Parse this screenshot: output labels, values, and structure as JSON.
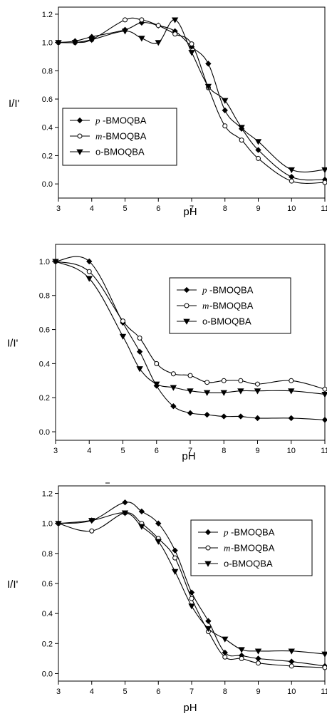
{
  "chart_data": [
    {
      "type": "line",
      "xlabel": "pH",
      "ylabel": "I/I'",
      "xlim": [
        3,
        11
      ],
      "ylim": [
        -0.1,
        1.25
      ],
      "xticks": [
        3,
        4,
        5,
        6,
        7,
        8,
        9,
        10,
        11
      ],
      "yticks": [
        0.0,
        0.2,
        0.4,
        0.6,
        0.8,
        1.0,
        1.2
      ],
      "ytick_labels": [
        "0.0",
        "0.2",
        "0.4",
        "0.6",
        "0.8",
        "1.0",
        "1.2"
      ],
      "grid": false,
      "legend_position": "center-left",
      "series": [
        {
          "prefix": "p",
          "name": "-BMOQBA",
          "marker": "diamond",
          "x": [
            3,
            3.5,
            4,
            5,
            5.5,
            6,
            6.5,
            7,
            7.5,
            8,
            8.5,
            9,
            10,
            11
          ],
          "y": [
            1.0,
            1.01,
            1.04,
            1.09,
            1.14,
            1.12,
            1.08,
            0.97,
            0.85,
            0.52,
            0.39,
            0.24,
            0.05,
            0.03
          ]
        },
        {
          "prefix": "m",
          "name": "-BMOQBA",
          "marker": "circle",
          "x": [
            3,
            3.5,
            4,
            5,
            5.5,
            6,
            6.5,
            7,
            7.5,
            8,
            8.5,
            9,
            10,
            11
          ],
          "y": [
            1.0,
            1.0,
            1.02,
            1.16,
            1.16,
            1.12,
            1.06,
            0.99,
            0.68,
            0.41,
            0.31,
            0.18,
            0.02,
            0.01
          ]
        },
        {
          "prefix": "",
          "name": "o-BMOQBA",
          "marker": "triangle",
          "x": [
            3,
            3.5,
            4,
            5,
            5.5,
            6,
            6.5,
            7,
            7.5,
            8,
            8.5,
            9,
            10,
            11
          ],
          "y": [
            1.0,
            1.0,
            1.02,
            1.08,
            1.03,
            1.0,
            1.16,
            0.93,
            0.69,
            0.59,
            0.4,
            0.3,
            0.1,
            0.1
          ]
        }
      ]
    },
    {
      "type": "line",
      "xlabel": "pH",
      "ylabel": "I/I'",
      "xlim": [
        3,
        11
      ],
      "ylim": [
        -0.05,
        1.1
      ],
      "xticks": [
        3,
        4,
        5,
        6,
        7,
        8,
        9,
        10,
        11
      ],
      "yticks": [
        0.0,
        0.2,
        0.4,
        0.6,
        0.8,
        1.0
      ],
      "ytick_labels": [
        "0.0",
        "0.2",
        "0.4",
        "0.6",
        "0.8",
        "1.0"
      ],
      "grid": false,
      "legend_position": "top-right",
      "series": [
        {
          "prefix": "p",
          "name": "-BMOQBA",
          "marker": "diamond",
          "x": [
            3,
            4,
            5,
            5.5,
            6,
            6.5,
            7,
            7.5,
            8,
            8.5,
            9,
            10,
            11
          ],
          "y": [
            1.0,
            1.0,
            0.64,
            0.47,
            0.27,
            0.15,
            0.11,
            0.1,
            0.09,
            0.09,
            0.08,
            0.08,
            0.07
          ]
        },
        {
          "prefix": "m",
          "name": "-BMOQBA",
          "marker": "circle",
          "x": [
            3,
            4,
            5,
            5.5,
            6,
            6.5,
            7,
            7.5,
            8,
            8.5,
            9,
            10,
            11
          ],
          "y": [
            1.0,
            0.94,
            0.65,
            0.55,
            0.4,
            0.34,
            0.33,
            0.29,
            0.3,
            0.3,
            0.28,
            0.3,
            0.25
          ]
        },
        {
          "prefix": "",
          "name": "o-BMOQBA",
          "marker": "triangle",
          "x": [
            3,
            4,
            5,
            5.5,
            6,
            6.5,
            7,
            7.5,
            8,
            8.5,
            9,
            10,
            11
          ],
          "y": [
            1.0,
            0.9,
            0.56,
            0.37,
            0.28,
            0.26,
            0.24,
            0.23,
            0.23,
            0.24,
            0.24,
            0.24,
            0.22
          ]
        }
      ]
    },
    {
      "type": "line",
      "xlabel": "pH",
      "ylabel": "I/I'",
      "xlim": [
        3,
        11
      ],
      "ylim": [
        -0.05,
        1.25
      ],
      "xticks": [
        3,
        4,
        5,
        6,
        7,
        8,
        9,
        10,
        11
      ],
      "yticks": [
        0.0,
        0.2,
        0.4,
        0.6,
        0.8,
        1.0,
        1.2
      ],
      "ytick_labels": [
        "0.0",
        "0.2",
        "0.4",
        "0.6",
        "0.8",
        "1.0",
        "1.2"
      ],
      "grid": false,
      "legend_position": "top-right",
      "series": [
        {
          "prefix": "p",
          "name": "-BMOQBA",
          "marker": "diamond",
          "x": [
            3,
            4,
            5,
            5.5,
            6,
            6.5,
            7,
            7.5,
            8,
            8.5,
            9,
            10,
            11
          ],
          "y": [
            1.0,
            1.02,
            1.14,
            1.08,
            1.0,
            0.82,
            0.54,
            0.35,
            0.14,
            0.12,
            0.1,
            0.08,
            0.05
          ]
        },
        {
          "prefix": "m",
          "name": "-BMOQBA",
          "marker": "circle",
          "x": [
            3,
            4,
            5,
            5.5,
            6,
            6.5,
            7,
            7.5,
            8,
            8.5,
            9,
            10,
            11
          ],
          "y": [
            1.0,
            0.95,
            1.07,
            1.0,
            0.9,
            0.77,
            0.5,
            0.28,
            0.11,
            0.1,
            0.07,
            0.05,
            0.04
          ]
        },
        {
          "prefix": "",
          "name": "o-BMOQBA",
          "marker": "triangle",
          "x": [
            3,
            4,
            5,
            5.5,
            6,
            6.5,
            7,
            7.5,
            8,
            8.5,
            9,
            10,
            11
          ],
          "y": [
            1.0,
            1.02,
            1.07,
            0.98,
            0.88,
            0.68,
            0.45,
            0.3,
            0.23,
            0.16,
            0.15,
            0.15,
            0.13
          ]
        }
      ]
    }
  ]
}
